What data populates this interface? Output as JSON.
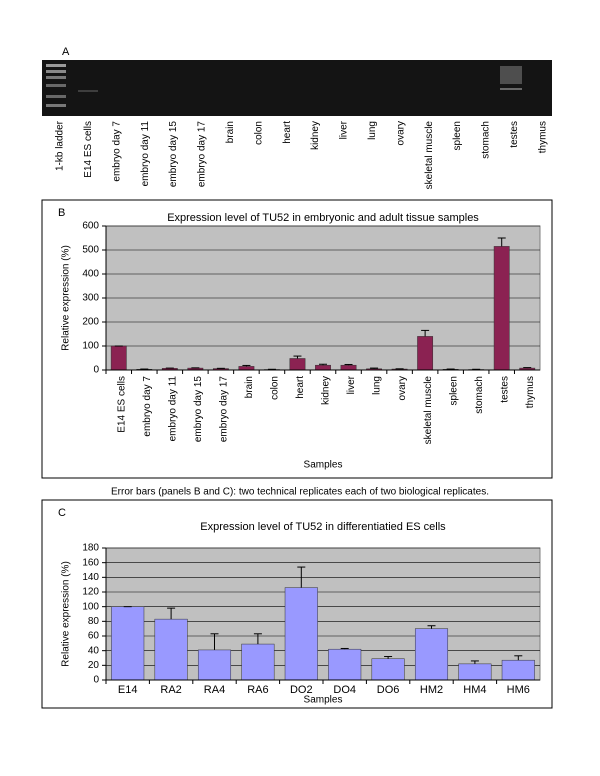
{
  "panel_a": {
    "label": "A",
    "lanes": [
      "1-kb ladder",
      "E14 ES cells",
      "embryo day 7",
      "embryo day 11",
      "embryo day 15",
      "embryo day 17",
      "brain",
      "colon",
      "heart",
      "kidney",
      "liver",
      "lung",
      "ovary",
      "skeletal muscle",
      "spleen",
      "stomach",
      "testes",
      "thymus"
    ]
  },
  "caption": "Error bars (panels B and C): two technical replicates each of two biological replicates.",
  "chart_data": [
    {
      "type": "bar",
      "label": "B",
      "title": "Expression level of TU52 in embryonic and adult tissue samples",
      "x_label": "Samples",
      "y_label": "Relative expression (%)",
      "categories": [
        "E14 ES cells",
        "embryo day 7",
        "embryo day 11",
        "embryo day 15",
        "embryo day 17",
        "brain",
        "colon",
        "heart",
        "kidney",
        "liver",
        "lung",
        "ovary",
        "skeletal muscle",
        "spleen",
        "stomach",
        "testes",
        "thymus"
      ],
      "values": [
        100,
        3,
        7,
        8,
        6,
        15,
        2,
        48,
        20,
        20,
        5,
        4,
        140,
        3,
        2,
        515,
        8
      ],
      "errors": [
        0,
        1,
        1,
        1,
        1,
        4,
        1,
        10,
        4,
        3,
        3,
        1,
        25,
        1,
        1,
        35,
        2
      ],
      "color": "#8b2252",
      "ylim": [
        0,
        600
      ],
      "yticks": [
        0,
        100,
        200,
        300,
        400,
        500,
        600
      ],
      "grid": true
    },
    {
      "type": "bar",
      "label": "C",
      "title": "Expression level of TU52 in differentiatied ES cells",
      "x_label": "Samples",
      "y_label": "Relative expression (%)",
      "categories": [
        "E14",
        "RA2",
        "RA4",
        "RA6",
        "DO2",
        "DO4",
        "DO6",
        "HM2",
        "HM4",
        "HM6"
      ],
      "values": [
        100,
        83,
        41,
        49,
        126,
        42,
        29,
        70,
        22,
        27
      ],
      "errors": [
        0,
        15,
        22,
        14,
        28,
        1,
        3,
        4,
        4,
        6
      ],
      "color": "#9999ff",
      "ylim": [
        0,
        180
      ],
      "yticks": [
        0,
        20,
        40,
        60,
        80,
        100,
        120,
        140,
        160,
        180
      ],
      "grid": true
    }
  ]
}
